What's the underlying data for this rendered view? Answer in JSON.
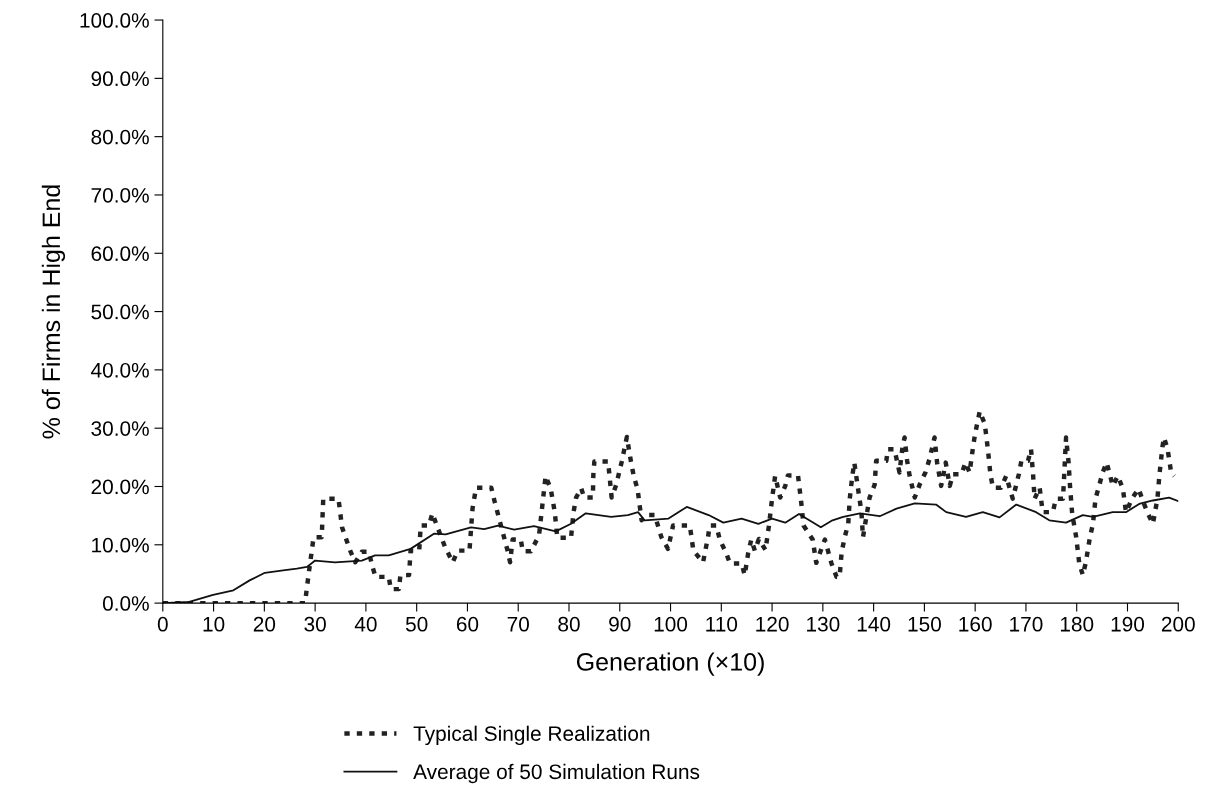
{
  "chart_data": {
    "type": "line",
    "xlabel": "Generation (×10)",
    "ylabel": "% of Firms in High End",
    "xlim": [
      0,
      200
    ],
    "xticks": [
      0,
      10,
      20,
      30,
      40,
      50,
      60,
      70,
      80,
      90,
      100,
      110,
      120,
      130,
      140,
      150,
      160,
      170,
      180,
      190,
      200
    ],
    "ylim": [
      0,
      100
    ],
    "yticks": [
      {
        "value": 0,
        "label": "0.0%"
      },
      {
        "value": 10,
        "label": "10.0%"
      },
      {
        "value": 20,
        "label": "20.0%"
      },
      {
        "value": 30,
        "label": "30.0%"
      },
      {
        "value": 40,
        "label": "40.0%"
      },
      {
        "value": 50,
        "label": "50.0%"
      },
      {
        "value": 60,
        "label": "60.0%"
      },
      {
        "value": 70,
        "label": "70.0%"
      },
      {
        "value": 80,
        "label": "80.0%"
      },
      {
        "value": 90,
        "label": "90.0%"
      },
      {
        "value": 100,
        "label": "100.0%"
      }
    ],
    "grid": false,
    "legend": "bottom",
    "marker": "none",
    "series": [
      {
        "name": "Typical Single Realization",
        "color": "#222222",
        "line_style": "dashed",
        "x": [
          0,
          28,
          28.7,
          29.7,
          31.3,
          31.6,
          34.6,
          35.3,
          36.9,
          37.9,
          39.2,
          40.6,
          41.2,
          41.9,
          44.5,
          44.9,
          46.5,
          46.8,
          48.5,
          48.8,
          50.5,
          50.8,
          52.4,
          53.1,
          54.1,
          55.6,
          57.1,
          58.1,
          60.4,
          61.0,
          61.7,
          64.7,
          65.3,
          66.6,
          67.9,
          68.4,
          68.9,
          70.5,
          70.9,
          72.5,
          74.1,
          74.6,
          75.4,
          76.4,
          77.2,
          77.7,
          80.4,
          80.9,
          81.4,
          82.4,
          83,
          84.7,
          84.8,
          85,
          87.7,
          88.4,
          89.3,
          90.4,
          91.4,
          92.2,
          92.8,
          93.5,
          94.3,
          95.3,
          96.9,
          98.2,
          99.5,
          100.5,
          102.5,
          103.8,
          104.5,
          106.4,
          107.4,
          107.7,
          109,
          109.7,
          111,
          111.7,
          114,
          114.6,
          115.3,
          115.9,
          116.6,
          117.4,
          118.7,
          119.4,
          120,
          120.6,
          121.6,
          122.6,
          123.1,
          125.1,
          125.7,
          126.2,
          128,
          128.7,
          130.4,
          131.7,
          132.7,
          133.3,
          133.7,
          134.3,
          135,
          135.3,
          135.8,
          136.2,
          136.9,
          137.6,
          137.9,
          139.2,
          140.2,
          140.5,
          142.5,
          142.8,
          144.1,
          145.1,
          145.7,
          146.1,
          146.6,
          147.1,
          148.1,
          149.1,
          150.2,
          151,
          152,
          152.5,
          153.3,
          154.2,
          155,
          155.6,
          157.3,
          158.1,
          158.9,
          159.6,
          160,
          160.9,
          161.9,
          162.5,
          163,
          163.5,
          165.1,
          166.1,
          167.4,
          168.6,
          169.1,
          170.4,
          171,
          171.4,
          171.7,
          172.7,
          173.3,
          175.3,
          175.9,
          177.3,
          177.9,
          178.4,
          178.7,
          179.1,
          179.9,
          180.5,
          181.2,
          181.8,
          182.6,
          183.2,
          183.7,
          184.5,
          185.1,
          185.9,
          187.1,
          188.1,
          189.1,
          189.7,
          191,
          192.2,
          193,
          194,
          195,
          195.9,
          196.3,
          196.9,
          197.2,
          197.9,
          198.6,
          199.2
        ],
        "values": [
          0,
          0,
          4.8,
          11.3,
          11.3,
          17.9,
          17.9,
          13.0,
          9.0,
          7.0,
          8.8,
          8.8,
          6.5,
          4.5,
          4.5,
          2.4,
          2.4,
          4.8,
          4.8,
          9.0,
          9.0,
          13.3,
          13.3,
          15.4,
          13.0,
          9.6,
          7.0,
          9.0,
          9.0,
          16.2,
          19.8,
          19.8,
          17.6,
          13.3,
          9.0,
          7.0,
          10.9,
          10.9,
          8.9,
          8.9,
          11.6,
          15.6,
          21.8,
          19.6,
          15.6,
          11.2,
          11.2,
          15.6,
          18.1,
          19.7,
          18.1,
          18.1,
          22.1,
          24.3,
          24.3,
          18.1,
          20.3,
          24.3,
          28.5,
          24.3,
          21.6,
          19.6,
          14.2,
          15.1,
          15.1,
          11.3,
          9.3,
          13.3,
          13.3,
          13.3,
          9.0,
          7.0,
          11.4,
          13.3,
          13.3,
          10.9,
          8.5,
          6.8,
          6.8,
          4.8,
          8.6,
          10.9,
          9.0,
          11.0,
          9.1,
          13.4,
          17.9,
          21.8,
          18.1,
          20.1,
          21.9,
          21.9,
          17.6,
          13.3,
          10.9,
          6.9,
          10.9,
          6.8,
          4.5,
          4.5,
          8.7,
          11.3,
          13.6,
          17.9,
          21.8,
          24.1,
          19.8,
          15.6,
          11.3,
          18.1,
          20.3,
          24.4,
          24.4,
          26.4,
          26.4,
          22.4,
          26.9,
          28.4,
          24.4,
          21.8,
          18.1,
          20.4,
          22.4,
          24.7,
          28.4,
          24.1,
          20.1,
          24.1,
          20.1,
          22.1,
          22.1,
          24.1,
          22.4,
          26.9,
          29.1,
          32.9,
          30.7,
          26.4,
          22.1,
          19.8,
          19.8,
          21.8,
          17.9,
          22.1,
          24.4,
          24.4,
          26.4,
          22.1,
          17.9,
          19.8,
          15.6,
          15.6,
          17.9,
          17.9,
          28.4,
          24.1,
          19.8,
          15.4,
          11.3,
          6.8,
          4.8,
          7.0,
          11.3,
          13.6,
          17.9,
          20.4,
          22.4,
          24.1,
          20.1,
          21.8,
          19.6,
          15.6,
          18.1,
          19.6,
          17.6,
          15.4,
          13.6,
          17.9,
          22.1,
          26.9,
          28.4,
          26.4,
          22.4,
          21.8
        ]
      },
      {
        "name": "Average of 50 Simulation Runs",
        "color": "#111111",
        "line_style": "solid",
        "x": [
          0,
          5.2,
          9.9,
          13.9,
          17.1,
          20.1,
          23.7,
          26.4,
          28.4,
          30.0,
          33.9,
          39.2,
          41.8,
          44.5,
          48.8,
          53.4,
          55.7,
          60.7,
          63.3,
          66,
          69.2,
          73.1,
          77.4,
          80.4,
          83.3,
          88.3,
          91.6,
          93.6,
          94.9,
          99.6,
          103.2,
          107.5,
          110.4,
          114,
          117.3,
          120,
          122.6,
          125.3,
          129.6,
          131.9,
          134,
          137.3,
          141.2,
          144.5,
          148.1,
          152.3,
          154.3,
          158.2,
          161.5,
          164.8,
          168.1,
          172,
          174.6,
          177.9,
          181.2,
          183.2,
          187.1,
          189.7,
          192.3,
          195,
          198.2,
          200
        ],
        "values": [
          0,
          0.2,
          1.4,
          2.2,
          3.9,
          5.2,
          5.6,
          5.9,
          6.2,
          7.3,
          7.0,
          7.3,
          8.2,
          8.2,
          9.3,
          11.9,
          11.8,
          13.0,
          12.7,
          13.3,
          12.6,
          13.2,
          12.3,
          13.6,
          15.4,
          14.8,
          15.1,
          15.6,
          14.2,
          14.5,
          16.5,
          15.1,
          13.8,
          14.5,
          13.6,
          14.5,
          13.8,
          15.3,
          13.0,
          14.2,
          14.8,
          15.4,
          14.9,
          16.2,
          17.1,
          16.9,
          15.6,
          14.8,
          15.6,
          14.7,
          16.9,
          15.6,
          14.2,
          13.8,
          15.1,
          14.8,
          15.6,
          15.6,
          17.0,
          17.6,
          18.1,
          17.5
        ]
      }
    ]
  }
}
